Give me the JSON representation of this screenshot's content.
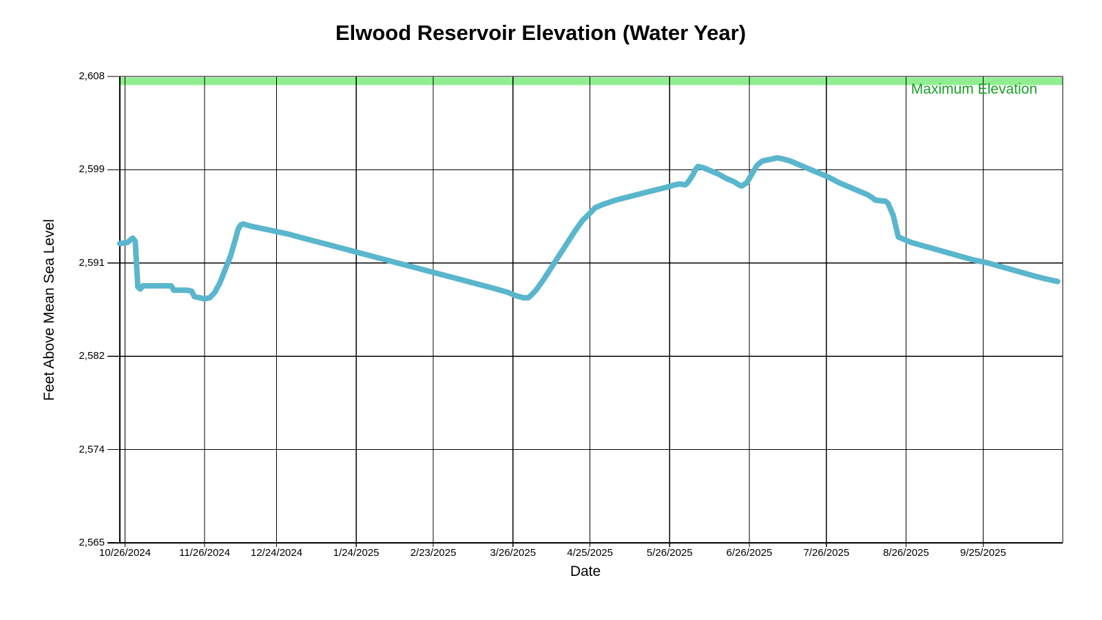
{
  "page": {
    "background": "#ffffff"
  },
  "chart_data": {
    "type": "line",
    "title": "Elwood Reservoir Elevation (Water Year)",
    "xlabel": "Date",
    "ylabel": "Feet Above Mean Sea Level",
    "ylim": [
      2565,
      2608
    ],
    "x_range": [
      "10/24/2024",
      "10/26/2025"
    ],
    "grid": true,
    "grid_color": "#000000",
    "x_ticks": [
      "10/26/2024",
      "11/26/2024",
      "12/24/2024",
      "1/24/2025",
      "2/23/2025",
      "3/26/2025",
      "4/25/2025",
      "5/26/2025",
      "6/26/2025",
      "7/26/2025",
      "8/26/2025",
      "9/25/2025"
    ],
    "y_ticks": [
      {
        "value": 2608.0,
        "label": "2,608"
      },
      {
        "value": 2599.4,
        "label": "2,599"
      },
      {
        "value": 2590.8,
        "label": "2,591"
      },
      {
        "value": 2582.2,
        "label": "2,582"
      },
      {
        "value": 2573.6,
        "label": "2,574"
      },
      {
        "value": 2565.0,
        "label": "2,565"
      }
    ],
    "max_elevation_line": {
      "value": 2608,
      "label": "Maximum Elevation",
      "band_color": "#90EE90",
      "label_color": "#18A024"
    },
    "series": [
      {
        "color": "#5AB6CD",
        "stroke_width": 8,
        "points": [
          [
            "10/24/2024",
            2592.6
          ],
          [
            "10/27/2024",
            2592.7
          ],
          [
            "10/28/2024",
            2592.9
          ],
          [
            "10/29/2024",
            2593.1
          ],
          [
            "10/30/2024",
            2592.8
          ],
          [
            "10/31/2024",
            2588.6
          ],
          [
            "11/1/2024",
            2588.4
          ],
          [
            "11/2/2024",
            2588.7
          ],
          [
            "11/8/2024",
            2588.7
          ],
          [
            "11/13/2024",
            2588.7
          ],
          [
            "11/14/2024",
            2588.3
          ],
          [
            "11/19/2024",
            2588.3
          ],
          [
            "11/21/2024",
            2588.2
          ],
          [
            "11/22/2024",
            2587.7
          ],
          [
            "11/24/2024",
            2587.6
          ],
          [
            "11/26/2024",
            2587.5
          ],
          [
            "11/28/2024",
            2587.6
          ],
          [
            "11/30/2024",
            2588.1
          ],
          [
            "12/2/2024",
            2589.0
          ],
          [
            "12/4/2024",
            2590.2
          ],
          [
            "12/6/2024",
            2591.4
          ],
          [
            "12/8/2024",
            2593.0
          ],
          [
            "12/9/2024",
            2593.9
          ],
          [
            "12/10/2024",
            2594.3
          ],
          [
            "12/11/2024",
            2594.4
          ],
          [
            "12/14/2024",
            2594.2
          ],
          [
            "12/20/2024",
            2593.9
          ],
          [
            "12/28/2024",
            2593.5
          ],
          [
            "1/5/2025",
            2593.0
          ],
          [
            "1/13/2025",
            2592.5
          ],
          [
            "1/21/2025",
            2592.0
          ],
          [
            "1/29/2025",
            2591.5
          ],
          [
            "2/6/2025",
            2591.0
          ],
          [
            "2/14/2025",
            2590.5
          ],
          [
            "2/22/2025",
            2590.0
          ],
          [
            "3/2/2025",
            2589.5
          ],
          [
            "3/10/2025",
            2589.0
          ],
          [
            "3/18/2025",
            2588.5
          ],
          [
            "3/24/2025",
            2588.1
          ],
          [
            "3/27/2025",
            2587.8
          ],
          [
            "3/30/2025",
            2587.6
          ],
          [
            "4/1/2025",
            2587.6
          ],
          [
            "4/2/2025",
            2587.8
          ],
          [
            "4/4/2025",
            2588.3
          ],
          [
            "4/7/2025",
            2589.3
          ],
          [
            "4/10/2025",
            2590.4
          ],
          [
            "4/13/2025",
            2591.5
          ],
          [
            "4/16/2025",
            2592.6
          ],
          [
            "4/19/2025",
            2593.7
          ],
          [
            "4/22/2025",
            2594.7
          ],
          [
            "4/25/2025",
            2595.4
          ],
          [
            "4/27/2025",
            2595.9
          ],
          [
            "4/30/2025",
            2596.2
          ],
          [
            "5/5/2025",
            2596.6
          ],
          [
            "5/10/2025",
            2596.9
          ],
          [
            "5/15/2025",
            2597.2
          ],
          [
            "5/20/2025",
            2597.5
          ],
          [
            "5/25/2025",
            2597.8
          ],
          [
            "5/28/2025",
            2598.0
          ],
          [
            "5/30/2025",
            2598.1
          ],
          [
            "6/1/2025",
            2598.0
          ],
          [
            "6/2/2025",
            2598.2
          ],
          [
            "6/4/2025",
            2598.9
          ],
          [
            "6/5/2025",
            2599.4
          ],
          [
            "6/6/2025",
            2599.7
          ],
          [
            "6/8/2025",
            2599.6
          ],
          [
            "6/11/2025",
            2599.3
          ],
          [
            "6/14/2025",
            2599.0
          ],
          [
            "6/17/2025",
            2598.6
          ],
          [
            "6/20/2025",
            2598.3
          ],
          [
            "6/22/2025",
            2598.0
          ],
          [
            "6/23/2025",
            2597.9
          ],
          [
            "6/25/2025",
            2598.2
          ],
          [
            "6/27/2025",
            2599.0
          ],
          [
            "6/29/2025",
            2599.8
          ],
          [
            "7/1/2025",
            2600.2
          ],
          [
            "7/3/2025",
            2600.3
          ],
          [
            "7/5/2025",
            2600.4
          ],
          [
            "7/7/2025",
            2600.5
          ],
          [
            "7/9/2025",
            2600.4
          ],
          [
            "7/12/2025",
            2600.2
          ],
          [
            "7/15/2025",
            2599.9
          ],
          [
            "7/18/2025",
            2599.6
          ],
          [
            "7/21/2025",
            2599.3
          ],
          [
            "7/24/2025",
            2599.0
          ],
          [
            "7/27/2025",
            2598.7
          ],
          [
            "7/31/2025",
            2598.2
          ],
          [
            "8/4/2025",
            2597.8
          ],
          [
            "8/8/2025",
            2597.4
          ],
          [
            "8/11/2025",
            2597.1
          ],
          [
            "8/13/2025",
            2596.8
          ],
          [
            "8/14/2025",
            2596.6
          ],
          [
            "8/18/2025",
            2596.5
          ],
          [
            "8/19/2025",
            2596.3
          ],
          [
            "8/21/2025",
            2595.2
          ],
          [
            "8/23/2025",
            2593.2
          ],
          [
            "8/25/2025",
            2593.0
          ],
          [
            "8/28/2025",
            2592.7
          ],
          [
            "9/3/2025",
            2592.3
          ],
          [
            "9/9/2025",
            2591.9
          ],
          [
            "9/15/2025",
            2591.5
          ],
          [
            "9/21/2025",
            2591.1
          ],
          [
            "9/27/2025",
            2590.8
          ],
          [
            "10/3/2025",
            2590.4
          ],
          [
            "10/9/2025",
            2590.0
          ],
          [
            "10/15/2025",
            2589.6
          ],
          [
            "10/20/2025",
            2589.3
          ],
          [
            "10/24/2025",
            2589.1
          ]
        ]
      }
    ]
  }
}
